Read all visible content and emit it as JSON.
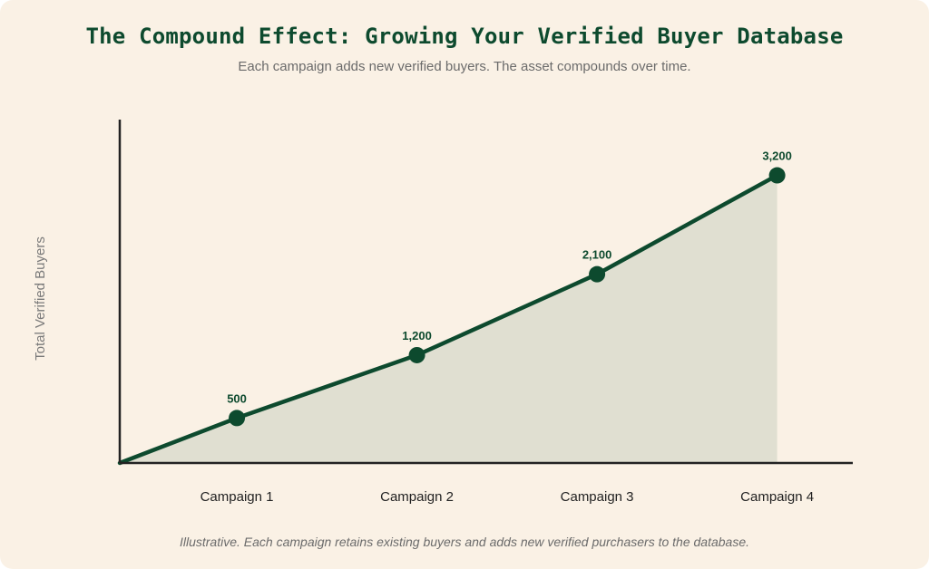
{
  "page": {
    "title": "The Compound Effect: Growing Your Verified Buyer Database",
    "subtitle": "Each campaign adds new verified buyers. The asset compounds over time.",
    "footnote": "Illustrative. Each campaign retains existing buyers and adds new verified purchasers to the database."
  },
  "colors": {
    "background": "#faf1e5",
    "line": "#0d4a2e",
    "area": "#e0dfd1",
    "axis": "#222222",
    "title": "#0d4a2e"
  },
  "chart_data": {
    "type": "area",
    "categories": [
      "Campaign 1",
      "Campaign 2",
      "Campaign 3",
      "Campaign 4"
    ],
    "x": [
      1,
      2,
      3,
      4
    ],
    "values": [
      500,
      1200,
      2100,
      3200
    ],
    "data_labels": [
      "500",
      "1,200",
      "2,100",
      "3,200"
    ],
    "origin": {
      "x": 0.35,
      "y": 0
    },
    "xlabel": "",
    "ylabel": "Total Verified Buyers",
    "xlim": [
      0.35,
      4.42
    ],
    "ylim": [
      0,
      3820
    ],
    "grid": false,
    "legend": "none"
  }
}
